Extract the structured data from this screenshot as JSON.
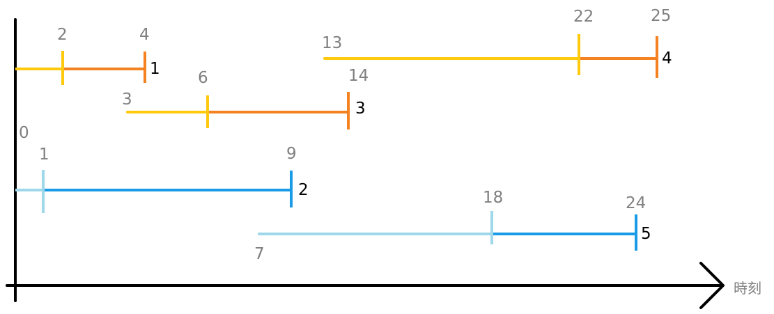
{
  "axis": {
    "x_label": "時刻",
    "axis_color": "#000000"
  },
  "colors": {
    "yellow": "#ffc90e",
    "orange": "#f58220",
    "light_blue": "#9ed8ea",
    "blue": "#1a9be6",
    "label_gray": "#7f7f7f"
  },
  "intervals": [
    {
      "id": "1",
      "start": "",
      "mid": "2",
      "end": "4",
      "first_color": "yellow",
      "second_color": "orange"
    },
    {
      "id": "4",
      "start": "13",
      "mid": "22",
      "end": "25",
      "first_color": "yellow",
      "second_color": "orange"
    },
    {
      "id": "3",
      "start": "3",
      "mid": "6",
      "end": "14",
      "first_color": "yellow",
      "second_color": "orange"
    },
    {
      "id": "2",
      "start": "0",
      "mid": "1",
      "end": "9",
      "first_color": "light_blue",
      "second_color": "blue"
    },
    {
      "id": "5",
      "start": "7",
      "mid": "18",
      "end": "24",
      "first_color": "light_blue",
      "second_color": "blue"
    }
  ]
}
